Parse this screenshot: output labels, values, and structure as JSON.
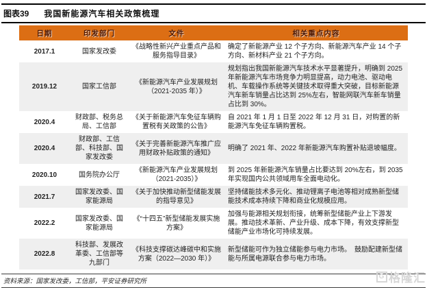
{
  "figure": {
    "label": "图表39",
    "title": "我国新能源汽车相关政策梳理"
  },
  "table": {
    "columns": [
      "日期",
      "印发部门",
      "文件",
      "相关重点内容"
    ],
    "rows": [
      {
        "date": "2017.1",
        "dept": "国家发改委",
        "doc": "《战略性新兴产业重点产品和服务指导目录》",
        "content": "确定了新能源产业 12 个子方向、新能源汽车产业 14 个子方向、新材料产业 21 个子方向。"
      },
      {
        "date": "2019.12",
        "dept": "国家工信部",
        "doc": "《新能源汽车产业发展规划（2021-2035 年）》",
        "content": "规划指出我国新能源汽车技术水平显著提升，明确到 2025 年新能源汽车市场竞争力明显提高，动力电池、驱动电机、车载操作系统等关键技术取得重大突破，目标新能源汽车新车销量占比达到 25%左右，智能网联汽车新车销量占比到 30%。"
      },
      {
        "date": "2020.4",
        "dept": "财政部、税务总局、工信部",
        "doc": "《关于新能源汽车免征车辆购置税有关政策的公告》",
        "content": "自 2021 年 1 月 1 日至 2022 年 12 月 31 日，对购置的新能源汽车免征车辆购置税。"
      },
      {
        "date": "2020.4",
        "dept": "财政部、工信部、科技部、国家发改委",
        "doc": "《关于完善新能源汽车推广应用财政补贴政策的通知》",
        "content": "明确了 2021 年、2022 年新能源汽车购置补贴退坡幅度。"
      },
      {
        "date": "2020.10",
        "dept": "国务院办公厅",
        "doc": "《新能源汽车产业发展规划（2021-2035）》",
        "content": "到 2025 年新能源汽车销量占比要达到 20%左右，到 2035 年实现国内公共领域用车全面电动化。"
      },
      {
        "date": "2021.7",
        "dept": "国家发改委、国家能源局",
        "doc": "《关于加快推动新型储能发展的指导意见》",
        "content": "坚持储能技术多元化、推动锂离子电池等相对成熟新型储能技术成本持续下降和商业化规模应用。"
      },
      {
        "date": "2022.2",
        "dept": "国家发改委、国家能源局",
        "doc": "《“十四五”新型储能发展实施方案》",
        "content": "加强与能源相关规划衔接，统筹新型储能产业上下游发展。推动技术革新、产业升级、成本下降，有效支撑新型储能产业市场化可持续发展。"
      },
      {
        "date": "2022.8",
        "dept": "科技部、发展改革委、工信部等九部门",
        "doc": "《科技支撑碳达峰碳中和实施方案（2022—2030 年）》",
        "content": "新型储能可作为独立储能参与电力市场。　鼓励配建新型储能与所属电源联合参与电力市场。"
      }
    ]
  },
  "footer": {
    "source": "资料来源：国家发改委，工信部，平安证券研究所"
  },
  "watermark": {
    "mark": "G",
    "text": "格隆汇"
  },
  "colors": {
    "header_bg": "#DC6E14",
    "header_text": "#4D1600",
    "alt_row_bg": "#EFEFEF",
    "rule": "#000000",
    "watermark": "#D6D6D6"
  }
}
